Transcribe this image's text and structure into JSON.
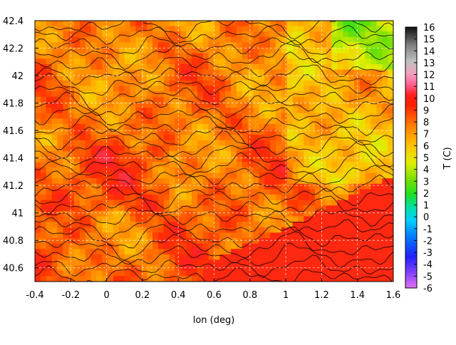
{
  "chart_data": {
    "type": "heatmap",
    "title": "",
    "xlabel": "lon (deg)",
    "ylabel": "",
    "xlim": [
      -0.4,
      1.6
    ],
    "ylim": [
      40.5,
      42.4
    ],
    "x_ticks": [
      "-0.4",
      "-0.2",
      "0",
      "0.2",
      "0.4",
      "0.6",
      "0.8",
      "1",
      "1.2",
      "1.4",
      "1.6"
    ],
    "y_ticks": [
      "40.6",
      "40.8",
      "41",
      "41.2",
      "41.4",
      "41.6",
      "41.8",
      "42",
      "42.2",
      "42.4"
    ],
    "grid": true,
    "colorbar": {
      "label": "T (C)",
      "range": [
        -6,
        16
      ],
      "ticks": [
        "16",
        "15",
        "14",
        "13",
        "12",
        "11",
        "10",
        "9",
        "8",
        "7",
        "6",
        "5",
        "4",
        "3",
        "2",
        "1",
        "0",
        "-1",
        "-2",
        "-3",
        "-4",
        "-5",
        "-6"
      ]
    },
    "description_values": {
      "sea_temperature_C": 10,
      "typical_land_temperature_C": [
        6,
        10
      ],
      "warmest_inland_C": 10,
      "coolest_highland_C": 3
    },
    "contours": true
  }
}
